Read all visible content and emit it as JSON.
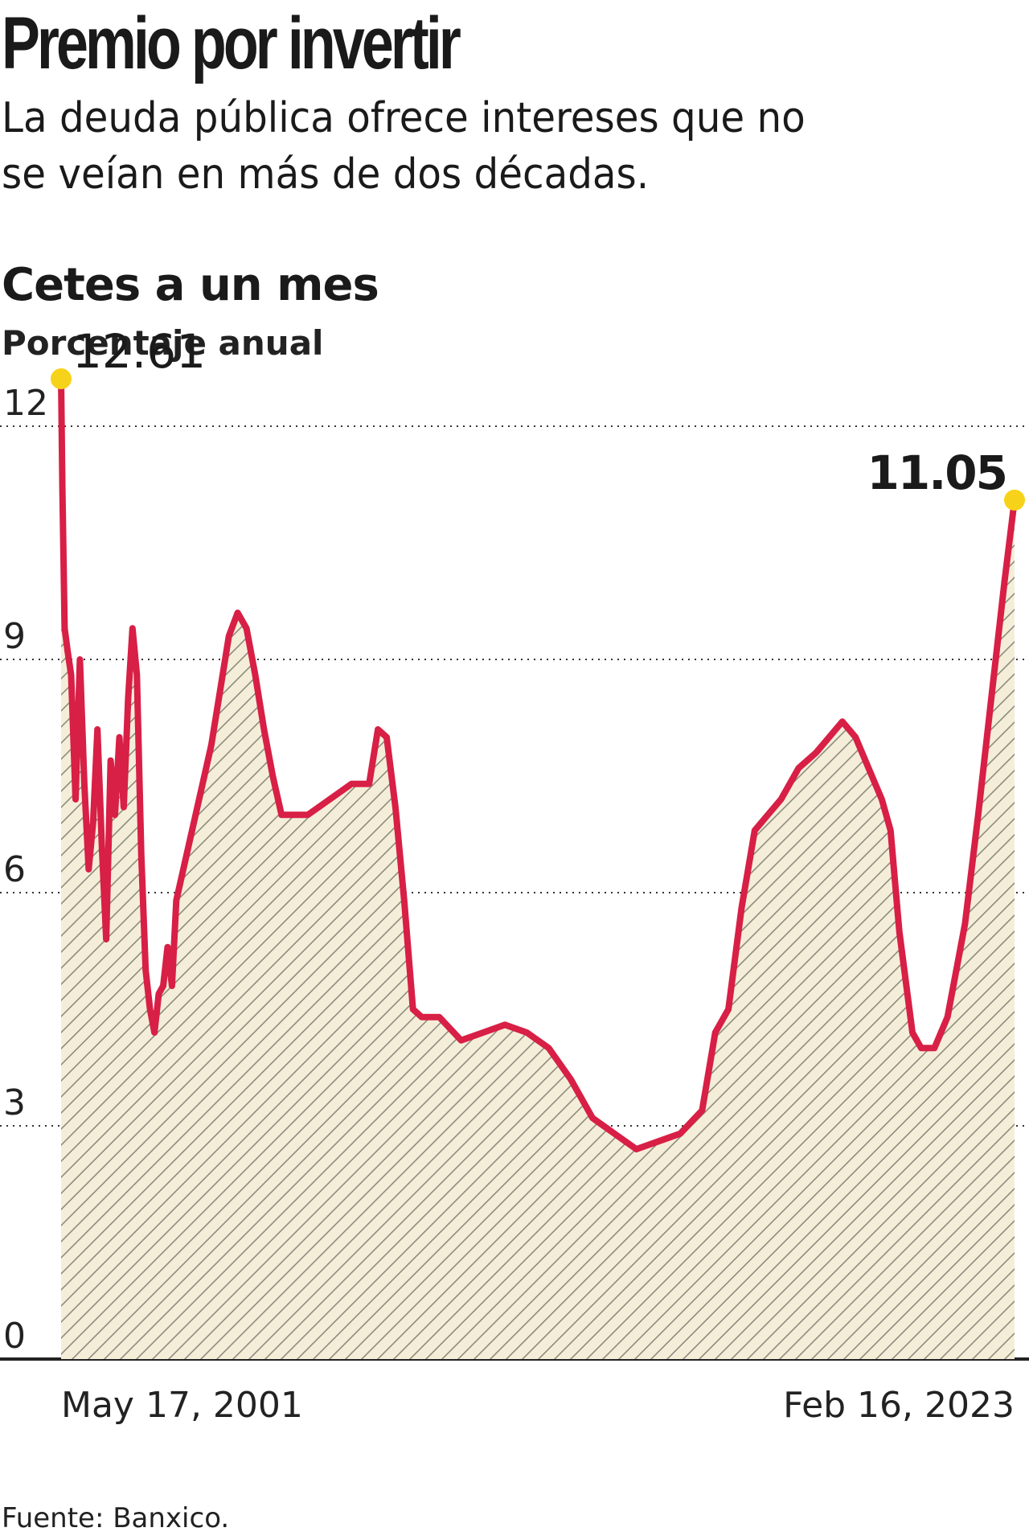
{
  "header": {
    "title": "Premio por invertir",
    "subtitle": "La deuda pública ofrece intereses que no se veían en más de dos décadas."
  },
  "footer": {
    "source": "Fuente: Banxico."
  },
  "colors": {
    "line": "#d81f45",
    "fill": "#f4eed9",
    "hatch": "#8f8b7e",
    "highlight": "#f7d21a",
    "grid": "#333333"
  },
  "chart_data": {
    "type": "area",
    "title": "Cetes a un mes",
    "subtitle": "Porcentaje anual",
    "ylim": [
      0,
      12
    ],
    "yticks": [
      0,
      3,
      6,
      9,
      12
    ],
    "grid": true,
    "x_labels": [
      "May 17, 2001",
      "Feb 16, 2023"
    ],
    "x_range": [
      2001.37,
      2023.13
    ],
    "annotations": [
      {
        "x": 2001.37,
        "y": 12.61,
        "label": "12.61"
      },
      {
        "x": 2023.13,
        "y": 11.05,
        "label": "11.05"
      }
    ],
    "series": [
      {
        "x": [
          2001.37,
          2001.4,
          2001.45,
          2001.52,
          2001.6,
          2001.7,
          2001.8,
          2001.9,
          2002.0,
          2002.1,
          2002.2,
          2002.3,
          2002.4,
          2002.5,
          2002.6,
          2002.7,
          2002.8,
          2002.9,
          2003.0,
          2003.1,
          2003.2,
          2003.3,
          2003.4,
          2003.5,
          2003.6,
          2003.7,
          2003.8,
          2003.9,
          2004.0,
          2004.2,
          2004.4,
          2004.6,
          2004.8,
          2005.0,
          2005.2,
          2005.4,
          2005.6,
          2005.8,
          2006.0,
          2006.2,
          2006.4,
          2006.6,
          2006.8,
          2007.0,
          2007.5,
          2008.0,
          2008.2,
          2008.4,
          2008.6,
          2008.8,
          2009.0,
          2009.2,
          2009.4,
          2009.6,
          2010.0,
          2010.5,
          2011.0,
          2011.5,
          2012.0,
          2012.5,
          2013.0,
          2013.5,
          2014.0,
          2014.5,
          2015.0,
          2015.5,
          2016.0,
          2016.3,
          2016.6,
          2016.9,
          2017.2,
          2017.5,
          2017.8,
          2018.2,
          2018.6,
          2018.9,
          2019.2,
          2019.5,
          2019.8,
          2020.1,
          2020.3,
          2020.5,
          2020.8,
          2021.0,
          2021.3,
          2021.6,
          2022.0,
          2022.3,
          2022.6,
          2022.9,
          2023.13
        ],
        "values": [
          12.61,
          11.2,
          9.4,
          9.1,
          8.8,
          7.2,
          9.0,
          7.4,
          6.3,
          6.9,
          8.1,
          6.6,
          5.4,
          7.7,
          7.0,
          8.0,
          7.1,
          8.5,
          9.4,
          8.8,
          6.5,
          5.0,
          4.5,
          4.2,
          4.7,
          4.8,
          5.3,
          4.8,
          5.9,
          6.4,
          6.9,
          7.4,
          7.9,
          8.6,
          9.3,
          9.6,
          9.4,
          8.8,
          8.1,
          7.5,
          7.0,
          7.0,
          7.0,
          7.0,
          7.2,
          7.4,
          7.4,
          7.4,
          8.1,
          8.0,
          7.1,
          5.9,
          4.5,
          4.4,
          4.4,
          4.1,
          4.2,
          4.3,
          4.2,
          4.0,
          3.6,
          3.1,
          2.9,
          2.7,
          2.8,
          2.9,
          3.2,
          4.2,
          4.5,
          5.8,
          6.8,
          7.0,
          7.2,
          7.6,
          7.8,
          8.0,
          8.2,
          8.0,
          7.6,
          7.2,
          6.8,
          5.5,
          4.2,
          4.0,
          4.0,
          4.4,
          5.6,
          7.0,
          8.5,
          10.0,
          11.05
        ]
      }
    ]
  }
}
